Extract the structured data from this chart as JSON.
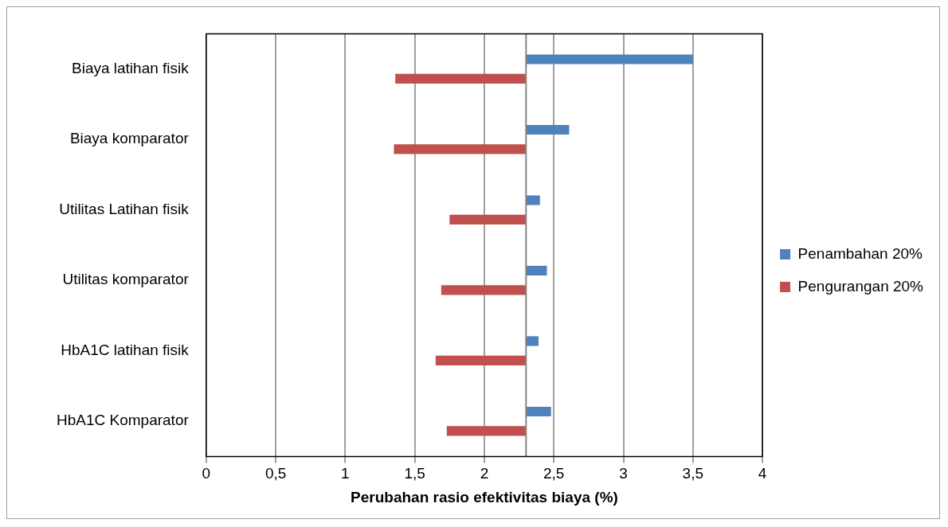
{
  "chart_data": {
    "type": "bar",
    "orientation": "horizontal",
    "xlabel": "Perubahan rasio efektivitas biaya (%)",
    "categories": [
      "Biaya latihan fisik",
      "Biaya komparator",
      "Utilitas Latihan fisik",
      "Utilitas komparator",
      "HbA1C latihan fisik",
      "HbA1C Komparator"
    ],
    "series": [
      {
        "name": "Penambahan 20%",
        "color": "#4f81bd",
        "base": [
          2.3,
          2.3,
          2.3,
          2.3,
          2.3,
          2.3
        ],
        "values": [
          1.2,
          0.31,
          0.1,
          0.15,
          0.09,
          0.18
        ]
      },
      {
        "name": "Pengurangan 20%",
        "color": "#c0504d",
        "base": [
          2.3,
          2.3,
          2.3,
          2.3,
          2.3,
          2.3
        ],
        "values": [
          -0.94,
          -0.95,
          -0.55,
          -0.61,
          -0.65,
          -0.57
        ]
      }
    ],
    "xlim": [
      0,
      4
    ],
    "xticks": [
      0,
      {
        "value": 0.5,
        "label": "0,5"
      },
      1,
      {
        "value": 1.5,
        "label": "1,5"
      },
      2,
      {
        "value": 2.5,
        "label": "2,5"
      },
      3,
      {
        "value": 3.5,
        "label": "3,5"
      },
      4
    ],
    "ref_lines": [
      {
        "axis": "x",
        "value": 2.3,
        "color": "#868686"
      }
    ],
    "grid": "x",
    "legend": "right"
  }
}
